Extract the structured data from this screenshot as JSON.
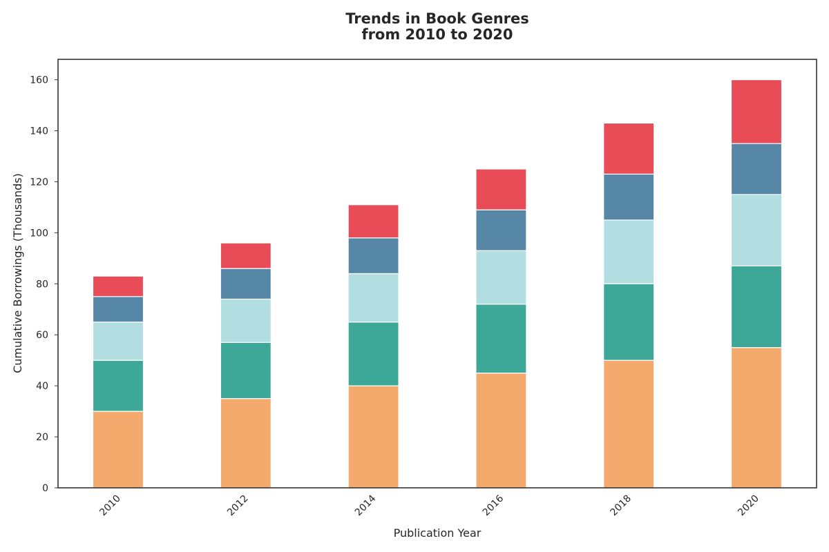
{
  "chart_data": {
    "type": "bar",
    "stacked": true,
    "title_lines": [
      "Trends in Book Genres",
      "from 2010 to 2020"
    ],
    "xlabel": "Publication Year",
    "ylabel": "Cumulative Borrowings (Thousands)",
    "categories": [
      "2010",
      "2012",
      "2014",
      "2016",
      "2018",
      "2020"
    ],
    "ylim": [
      0,
      168
    ],
    "yticks": [
      0,
      20,
      40,
      60,
      80,
      100,
      120,
      140,
      160
    ],
    "grid": false,
    "legend": "none",
    "series": [
      {
        "color": "#f4a96d",
        "values": [
          30,
          35,
          40,
          45,
          50,
          55
        ]
      },
      {
        "color": "#3da798",
        "values": [
          20,
          22,
          25,
          27,
          30,
          32
        ]
      },
      {
        "color": "#b2dee1",
        "values": [
          15,
          17,
          19,
          21,
          25,
          28
        ]
      },
      {
        "color": "#5787a6",
        "values": [
          10,
          12,
          14,
          16,
          18,
          20
        ]
      },
      {
        "color": "#e84c57",
        "values": [
          8,
          10,
          13,
          16,
          20,
          25
        ]
      }
    ]
  }
}
